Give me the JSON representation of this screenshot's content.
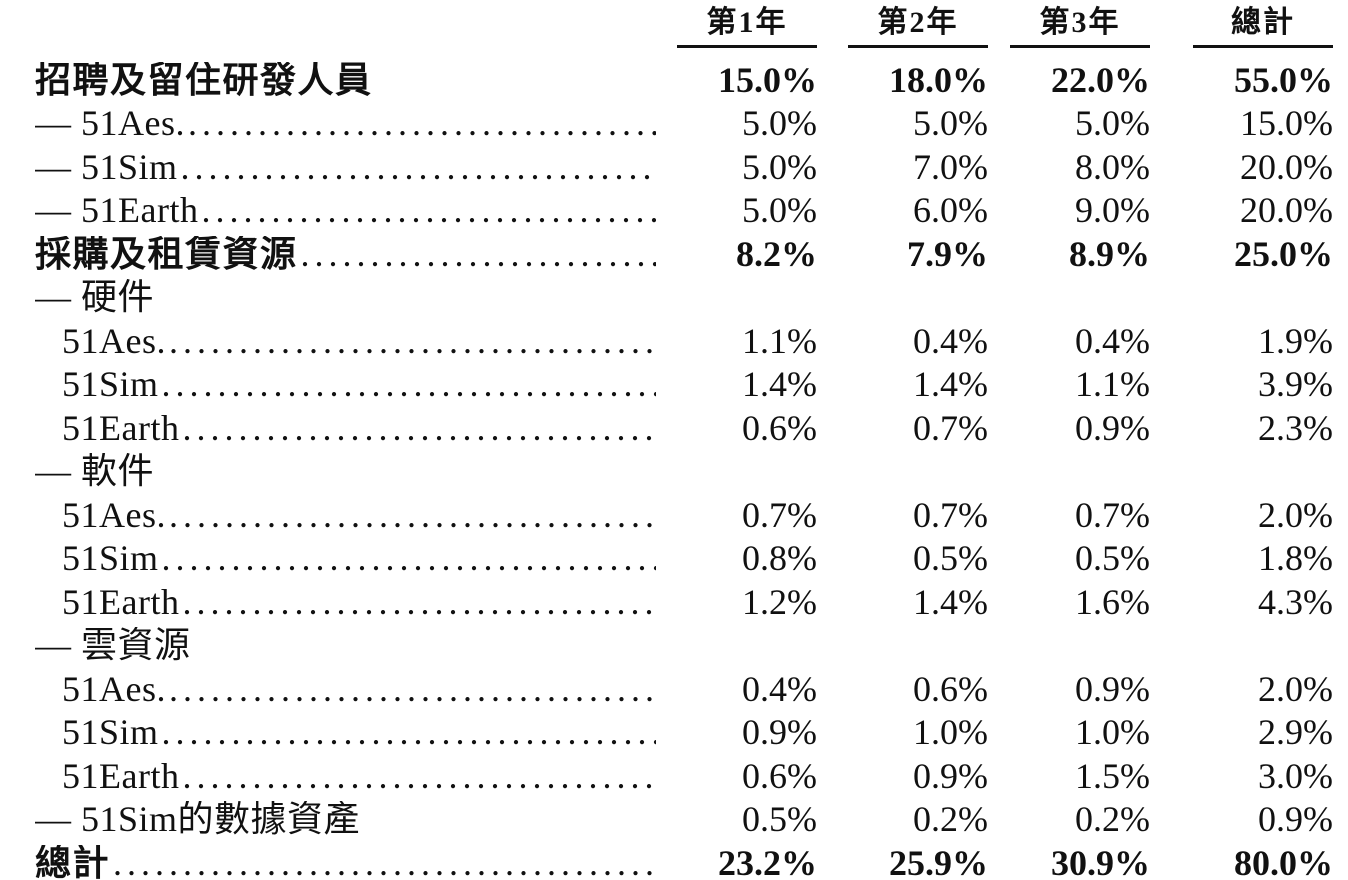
{
  "table": {
    "label_column_header": "",
    "columns": [
      "第1年",
      "第2年",
      "第3年",
      "總計"
    ],
    "rows": [
      {
        "label": "招聘及留住研發人員",
        "bold": true,
        "indent": 0,
        "dots": false,
        "values": [
          "15.0%",
          "18.0%",
          "22.0%",
          "55.0%"
        ]
      },
      {
        "label": "— 51Aes.",
        "bold": false,
        "indent": 0,
        "dots": true,
        "values": [
          "5.0%",
          "5.0%",
          "5.0%",
          "15.0%"
        ]
      },
      {
        "label": "— 51Sim",
        "bold": false,
        "indent": 0,
        "dots": true,
        "values": [
          "5.0%",
          "7.0%",
          "8.0%",
          "20.0%"
        ]
      },
      {
        "label": "— 51Earth",
        "bold": false,
        "indent": 0,
        "dots": true,
        "values": [
          "5.0%",
          "6.0%",
          "9.0%",
          "20.0%"
        ]
      },
      {
        "label": "採購及租賃資源",
        "bold": true,
        "indent": 0,
        "dots": true,
        "values": [
          "8.2%",
          "7.9%",
          "8.9%",
          "25.0%"
        ]
      },
      {
        "label": "— 硬件",
        "bold": false,
        "indent": 0,
        "dots": false,
        "values": [
          "",
          "",
          "",
          ""
        ]
      },
      {
        "label": "51Aes.",
        "bold": false,
        "indent": 1,
        "dots": true,
        "values": [
          "1.1%",
          "0.4%",
          "0.4%",
          "1.9%"
        ]
      },
      {
        "label": "51Sim",
        "bold": false,
        "indent": 1,
        "dots": true,
        "values": [
          "1.4%",
          "1.4%",
          "1.1%",
          "3.9%"
        ]
      },
      {
        "label": "51Earth",
        "bold": false,
        "indent": 1,
        "dots": true,
        "values": [
          "0.6%",
          "0.7%",
          "0.9%",
          "2.3%"
        ]
      },
      {
        "label": "— 軟件",
        "bold": false,
        "indent": 0,
        "dots": false,
        "values": [
          "",
          "",
          "",
          ""
        ]
      },
      {
        "label": "51Aes.",
        "bold": false,
        "indent": 1,
        "dots": true,
        "values": [
          "0.7%",
          "0.7%",
          "0.7%",
          "2.0%"
        ]
      },
      {
        "label": "51Sim",
        "bold": false,
        "indent": 1,
        "dots": true,
        "values": [
          "0.8%",
          "0.5%",
          "0.5%",
          "1.8%"
        ]
      },
      {
        "label": "51Earth",
        "bold": false,
        "indent": 1,
        "dots": true,
        "values": [
          "1.2%",
          "1.4%",
          "1.6%",
          "4.3%"
        ]
      },
      {
        "label": "— 雲資源",
        "bold": false,
        "indent": 0,
        "dots": false,
        "values": [
          "",
          "",
          "",
          ""
        ]
      },
      {
        "label": "51Aes.",
        "bold": false,
        "indent": 1,
        "dots": true,
        "values": [
          "0.4%",
          "0.6%",
          "0.9%",
          "2.0%"
        ]
      },
      {
        "label": "51Sim",
        "bold": false,
        "indent": 1,
        "dots": true,
        "values": [
          "0.9%",
          "1.0%",
          "1.0%",
          "2.9%"
        ]
      },
      {
        "label": "51Earth",
        "bold": false,
        "indent": 1,
        "dots": true,
        "values": [
          "0.6%",
          "0.9%",
          "1.5%",
          "3.0%"
        ]
      },
      {
        "label": "— 51Sim的數據資產",
        "bold": false,
        "indent": 0,
        "dots": false,
        "values": [
          "0.5%",
          "0.2%",
          "0.2%",
          "0.9%"
        ]
      },
      {
        "label": "總計",
        "bold": true,
        "indent": 0,
        "dots": true,
        "values": [
          "23.2%",
          "25.9%",
          "30.9%",
          "80.0%"
        ]
      }
    ]
  },
  "colors": {
    "text": "#111111",
    "rule": "#111111",
    "background": "#ffffff"
  }
}
